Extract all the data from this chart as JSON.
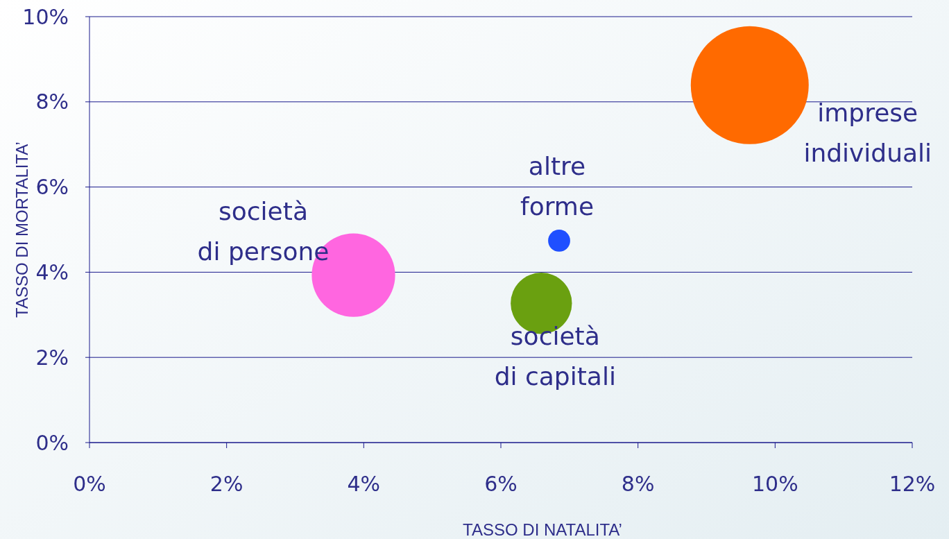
{
  "chart_data": {
    "type": "bubble",
    "xlabel": "TASSO DI NATALITA’",
    "ylabel": "TASSO DI MORTALITA’",
    "xlim": [
      0,
      12
    ],
    "ylim": [
      0,
      10
    ],
    "xticks": [
      {
        "value": 0,
        "label": "0%"
      },
      {
        "value": 2,
        "label": "2%"
      },
      {
        "value": 4,
        "label": "4%"
      },
      {
        "value": 6,
        "label": "6%"
      },
      {
        "value": 8,
        "label": "8%"
      },
      {
        "value": 10,
        "label": "10%"
      },
      {
        "value": 12,
        "label": "12%"
      }
    ],
    "yticks": [
      {
        "value": 0,
        "label": "0%"
      },
      {
        "value": 2,
        "label": "2%"
      },
      {
        "value": 4,
        "label": "4%"
      },
      {
        "value": 6,
        "label": "6%"
      },
      {
        "value": 8,
        "label": "8%"
      },
      {
        "value": 10,
        "label": "10%"
      }
    ],
    "grid": "y",
    "series": [
      {
        "name": "società di persone",
        "color": "#ff66e0",
        "x": [
          3.85
        ],
        "values": [
          3.93
        ],
        "sizes": [
          0.5
        ]
      },
      {
        "name": "altre forme",
        "color": "#1f4fff",
        "x": [
          6.85
        ],
        "values": [
          4.74
        ],
        "sizes": [
          0.035
        ]
      },
      {
        "name": "società di capitali",
        "color": "#6aa010",
        "x": [
          6.59
        ],
        "values": [
          3.27
        ],
        "sizes": [
          0.27
        ]
      },
      {
        "name": "imprese individuali",
        "color": "#ff6a00",
        "x": [
          9.63
        ],
        "values": [
          8.39
        ],
        "sizes": [
          1
        ]
      }
    ]
  }
}
